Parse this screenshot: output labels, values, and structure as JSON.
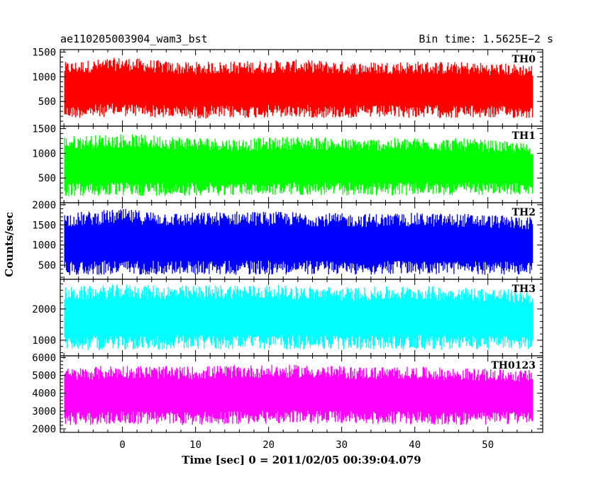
{
  "header": {
    "observation_id": "ae110205003904_wam3_bst",
    "bin_time": "Bin time: 1.5625E−2 s"
  },
  "chart_data": {
    "type": "line",
    "title": "ae110205003904_wam3_bst",
    "subtitle": "Bin time: 1.5625E−2 s",
    "xlabel": "Time [sec] 0 = 2011/02/05 00:39:04.079",
    "ylabel": "Counts/sec",
    "xlim": [
      -8.5,
      57.5
    ],
    "x_data_range": [
      -7.9,
      56.1
    ],
    "xticks": [
      0,
      10,
      20,
      30,
      40,
      50
    ],
    "x_tick_labels": [
      "0",
      "10",
      "20",
      "30",
      "40",
      "50"
    ],
    "grid": false,
    "panels": [
      {
        "name": "TH0",
        "color": "#ff0000",
        "ylim": [
          0,
          1550
        ],
        "yticks": [
          500,
          1000,
          1500
        ],
        "y_tick_labels": [
          "500",
          "1000",
          "1500"
        ],
        "typical_range": [
          150,
          1350
        ],
        "envelope": [
          [
            -7.9,
            150,
            1300
          ],
          [
            0,
            200,
            1400
          ],
          [
            8,
            150,
            1300
          ],
          [
            16,
            160,
            1320
          ],
          [
            24,
            170,
            1350
          ],
          [
            32,
            160,
            1300
          ],
          [
            40,
            170,
            1320
          ],
          [
            48,
            160,
            1300
          ],
          [
            56.1,
            160,
            1250
          ]
        ]
      },
      {
        "name": "TH1",
        "color": "#00ff00",
        "ylim": [
          0,
          1550
        ],
        "yticks": [
          500,
          1000,
          1500
        ],
        "y_tick_labels": [
          "500",
          "1000",
          "1500"
        ],
        "typical_range": [
          150,
          1350
        ],
        "envelope": [
          [
            -7.9,
            120,
            1350
          ],
          [
            0,
            130,
            1400
          ],
          [
            8,
            140,
            1350
          ],
          [
            16,
            150,
            1300
          ],
          [
            24,
            150,
            1350
          ],
          [
            32,
            140,
            1300
          ],
          [
            40,
            150,
            1320
          ],
          [
            48,
            150,
            1300
          ],
          [
            56.1,
            160,
            1200
          ]
        ]
      },
      {
        "name": "TH2",
        "color": "#0000ff",
        "ylim": [
          150,
          2050
        ],
        "yticks": [
          500,
          1000,
          1500,
          2000
        ],
        "y_tick_labels": [
          "500",
          "1000",
          "1500",
          "2000"
        ],
        "typical_range": [
          300,
          1800
        ],
        "envelope": [
          [
            -7.9,
            250,
            1800
          ],
          [
            0,
            260,
            1900
          ],
          [
            8,
            270,
            1800
          ],
          [
            16,
            260,
            1850
          ],
          [
            24,
            270,
            1820
          ],
          [
            32,
            260,
            1780
          ],
          [
            40,
            270,
            1800
          ],
          [
            48,
            260,
            1780
          ],
          [
            56.1,
            260,
            1700
          ]
        ]
      },
      {
        "name": "TH3",
        "color": "#00ffff",
        "ylim": [
          500,
          2950
        ],
        "yticks": [
          1000,
          2000
        ],
        "y_tick_labels": [
          "1000",
          "2000"
        ],
        "typical_range": [
          800,
          2600
        ],
        "envelope": [
          [
            -7.9,
            700,
            2700
          ],
          [
            0,
            680,
            2800
          ],
          [
            8,
            700,
            2750
          ],
          [
            16,
            690,
            2800
          ],
          [
            24,
            700,
            2750
          ],
          [
            32,
            690,
            2700
          ],
          [
            40,
            700,
            2750
          ],
          [
            48,
            690,
            2700
          ],
          [
            56.1,
            700,
            2600
          ]
        ]
      },
      {
        "name": "TH0123",
        "color": "#ff00ff",
        "ylim": [
          1800,
          6100
        ],
        "yticks": [
          2000,
          3000,
          4000,
          5000,
          6000
        ],
        "y_tick_labels": [
          "2000",
          "3000",
          "4000",
          "5000",
          "6000"
        ],
        "typical_range": [
          2500,
          5200
        ],
        "envelope": [
          [
            -7.9,
            2200,
            5400
          ],
          [
            0,
            2250,
            5600
          ],
          [
            8,
            2200,
            5500
          ],
          [
            16,
            2250,
            5600
          ],
          [
            24,
            2300,
            5600
          ],
          [
            32,
            2250,
            5500
          ],
          [
            40,
            2250,
            5500
          ],
          [
            48,
            2200,
            5400
          ],
          [
            56.1,
            2300,
            5300
          ]
        ]
      }
    ]
  }
}
